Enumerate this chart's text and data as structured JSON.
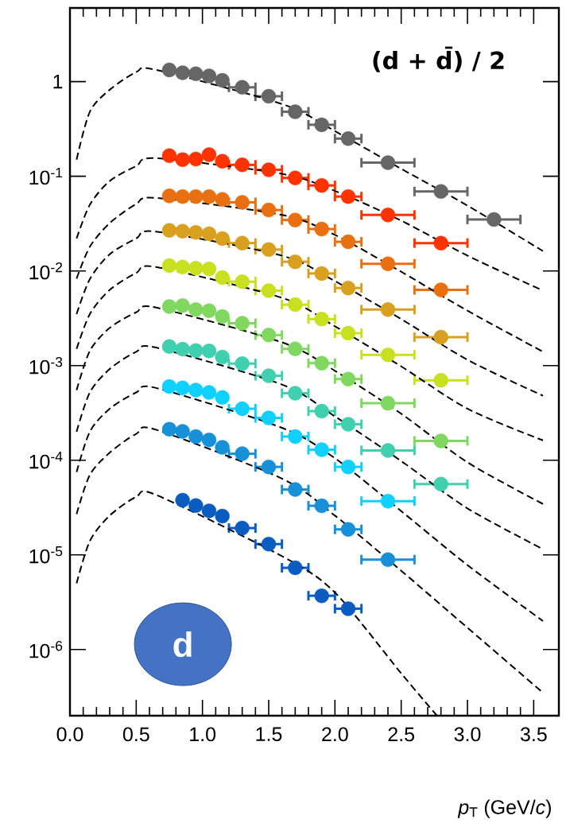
{
  "chart_data": {
    "type": "scatter",
    "title": "(d + d̄) / 2",
    "xlabel": "*p*$_{T}$ (GeV/*c*)",
    "annotations": [
      "d"
    ],
    "log": true,
    "xlim": [
      0,
      3.69
    ],
    "ylim": [
      2e-07,
      6
    ],
    "xticks": [
      {
        "value": 0,
        "label": "0.0"
      },
      {
        "value": 0.5,
        "label": "0.5"
      },
      {
        "value": 1,
        "label": "1.0"
      },
      {
        "value": 1.5,
        "label": "1.5"
      },
      {
        "value": 2,
        "label": "2.0"
      },
      {
        "value": 2.5,
        "label": "2.5"
      },
      {
        "value": 3,
        "label": "3.0"
      },
      {
        "value": 3.5,
        "label": "3.5"
      }
    ],
    "yticks": [
      {
        "value": 1e-06,
        "label": "10$^{-6}$"
      },
      {
        "value": 1e-05,
        "label": "10$^{-5}$"
      },
      {
        "value": 0.0001,
        "label": "10$^{-4}$"
      },
      {
        "value": 0.001,
        "label": "10$^{-3}$"
      },
      {
        "value": 0.01,
        "label": "10$^{-2}$"
      },
      {
        "value": 0.1,
        "label": "10$^{-1}$"
      },
      1
    ],
    "x": [
      0.75,
      0.85,
      0.95,
      1.05,
      1.15,
      1.3,
      1.5,
      1.7,
      1.9,
      2.1,
      2.4,
      2.8,
      3.2
    ],
    "series": [
      {
        "color": "#666666",
        "marker": "circle",
        "values": [
          1.33,
          1.24,
          1.21,
          1.15,
          1.03,
          0.87,
          0.7,
          0.48,
          0.35,
          0.25,
          0.139,
          0.069,
          0.035
        ],
        "xerrors": [
          null,
          null,
          null,
          null,
          null,
          0.1,
          0.1,
          0.1,
          0.1,
          0.1,
          0.2,
          0.2,
          0.2
        ]
      },
      {
        "color": "#ff3300",
        "marker": "circle",
        "values": [
          0.165,
          0.15,
          0.152,
          0.169,
          0.144,
          0.132,
          0.117,
          0.096,
          0.08,
          0.061,
          0.039,
          0.0197,
          null
        ],
        "xerrors": [
          null,
          null,
          null,
          null,
          null,
          0.1,
          0.1,
          0.1,
          0.1,
          0.1,
          0.2,
          0.2,
          null
        ]
      },
      {
        "color": "#e87010",
        "marker": "circle",
        "values": [
          0.062,
          0.061,
          0.061,
          0.061,
          0.057,
          0.053,
          0.044,
          0.0345,
          0.0277,
          0.0203,
          0.0119,
          0.0063,
          null
        ],
        "xerrors": [
          null,
          null,
          null,
          null,
          null,
          0.1,
          0.1,
          0.1,
          0.1,
          0.1,
          0.2,
          0.2,
          null
        ]
      },
      {
        "color": "#d9a020",
        "marker": "circle",
        "values": [
          0.0268,
          0.0263,
          0.0255,
          0.0247,
          0.022,
          0.0197,
          0.0168,
          0.0125,
          0.0094,
          0.0066,
          0.0039,
          0.002,
          null
        ],
        "xerrors": [
          null,
          null,
          null,
          null,
          null,
          0.1,
          0.1,
          0.1,
          0.1,
          0.1,
          0.2,
          0.2,
          null
        ]
      },
      {
        "color": "#c8e020",
        "marker": "circle",
        "values": [
          0.0114,
          0.011,
          0.0107,
          0.0105,
          0.0085,
          0.0077,
          0.0062,
          0.0044,
          0.0031,
          0.0022,
          0.0013,
          0.0007,
          null
        ],
        "xerrors": [
          null,
          null,
          null,
          null,
          null,
          0.1,
          0.1,
          0.1,
          0.1,
          0.1,
          0.2,
          0.2,
          null
        ]
      },
      {
        "color": "#80d860",
        "marker": "circle",
        "values": [
          0.0042,
          0.0043,
          0.0039,
          0.0038,
          0.0033,
          0.0028,
          0.0021,
          0.0015,
          0.00106,
          0.00072,
          0.0004,
          0.00016,
          null
        ],
        "xerrors": [
          null,
          null,
          null,
          null,
          null,
          0.1,
          0.1,
          0.1,
          0.1,
          0.1,
          0.2,
          0.2,
          null
        ]
      },
      {
        "color": "#40d0b0",
        "marker": "circle",
        "values": [
          0.00159,
          0.00149,
          0.00144,
          0.00143,
          0.00123,
          0.00105,
          0.00078,
          0.00051,
          0.00033,
          0.00024,
          0.000127,
          5.6e-05,
          null
        ],
        "xerrors": [
          null,
          null,
          null,
          null,
          null,
          0.1,
          0.1,
          0.1,
          0.1,
          0.1,
          0.2,
          0.2,
          null
        ]
      },
      {
        "color": "#10d0ff",
        "marker": "circle",
        "values": [
          0.0006,
          0.00058,
          0.00055,
          0.00052,
          0.00046,
          0.00035,
          0.00028,
          0.000178,
          0.000129,
          8.5e-05,
          3.7e-05,
          null,
          null
        ],
        "xerrors": [
          null,
          null,
          null,
          null,
          null,
          0.1,
          0.1,
          0.1,
          0.1,
          0.1,
          0.2,
          null,
          null
        ]
      },
      {
        "color": "#1890d8",
        "marker": "circle",
        "values": [
          0.000213,
          0.000202,
          0.000178,
          0.000164,
          0.000137,
          0.000117,
          8.5e-05,
          4.9e-05,
          3.3e-05,
          1.86e-05,
          8.9e-06,
          null,
          null
        ],
        "xerrors": [
          null,
          null,
          null,
          null,
          null,
          0.1,
          0.1,
          0.1,
          0.1,
          0.1,
          0.2,
          null,
          null
        ]
      },
      {
        "color": "#0a5cc0",
        "marker": "circle",
        "values": [
          null,
          3.78e-05,
          3.32e-05,
          2.92e-05,
          2.57e-05,
          1.92e-05,
          1.3e-05,
          7.3e-06,
          3.7e-06,
          2.7e-06,
          null,
          null,
          null
        ],
        "xerrors": [
          null,
          null,
          null,
          null,
          null,
          0.1,
          0.1,
          0.1,
          0.1,
          0.1,
          null,
          null,
          null
        ]
      },
      {
        "type": "line",
        "color": "#000000",
        "line_style": "dashed",
        "marker": "none",
        "x": [
          0.05,
          0.15,
          0.3,
          0.5,
          0.65,
          1.6,
          2.0,
          2.5,
          3.0,
          3.57
        ],
        "values": [
          0.15,
          0.48,
          0.82,
          1.26,
          1.33,
          0.58,
          0.3,
          0.12,
          0.049,
          0.0162
        ]
      },
      {
        "type": "line",
        "color": "#000000",
        "line_style": "dashed",
        "marker": "none",
        "x": [
          0.05,
          0.15,
          0.3,
          0.5,
          0.65,
          1.6,
          2.0,
          2.5,
          3.0,
          3.57
        ],
        "values": [
          0.022,
          0.05,
          0.089,
          0.128,
          0.155,
          0.106,
          0.07,
          0.034,
          0.0145,
          0.0062
        ]
      },
      {
        "type": "line",
        "color": "#000000",
        "line_style": "dashed",
        "marker": "none",
        "x": [
          0.05,
          0.15,
          0.3,
          0.5,
          0.65,
          1.6,
          2.0,
          2.5,
          3.0,
          3.57
        ],
        "values": [
          0.0083,
          0.018,
          0.032,
          0.051,
          0.059,
          0.039,
          0.024,
          0.0098,
          0.0038,
          0.0014
        ]
      },
      {
        "type": "line",
        "color": "#000000",
        "line_style": "dashed",
        "marker": "none",
        "x": [
          0.05,
          0.15,
          0.3,
          0.5,
          0.65,
          1.6,
          2.0,
          2.5,
          3.0,
          3.57
        ],
        "values": [
          0.0035,
          0.0082,
          0.015,
          0.022,
          0.026,
          0.0145,
          0.0078,
          0.0031,
          0.00115,
          0.00048
        ]
      },
      {
        "type": "line",
        "color": "#000000",
        "line_style": "dashed",
        "marker": "none",
        "x": [
          0.05,
          0.15,
          0.3,
          0.5,
          0.65,
          1.6,
          2.0,
          2.5,
          3.0,
          3.57
        ],
        "values": [
          0.0015,
          0.0035,
          0.0063,
          0.0095,
          0.011,
          0.0052,
          0.0026,
          0.00098,
          0.00035,
          0.000162
        ]
      },
      {
        "type": "line",
        "color": "#000000",
        "line_style": "dashed",
        "marker": "none",
        "x": [
          0.05,
          0.15,
          0.3,
          0.5,
          0.65,
          1.6,
          2.0,
          2.5,
          3.0,
          3.57
        ],
        "values": [
          0.00055,
          0.00143,
          0.0025,
          0.00365,
          0.0041,
          0.00176,
          0.00088,
          0.00031,
          9.5e-05,
          3.45e-05
        ]
      },
      {
        "type": "line",
        "color": "#000000",
        "line_style": "dashed",
        "marker": "none",
        "x": [
          0.05,
          0.15,
          0.3,
          0.5,
          0.65,
          1.6,
          2.0,
          2.5,
          3.0,
          3.57
        ],
        "values": [
          0.0002,
          0.00052,
          0.00092,
          0.0014,
          0.00155,
          0.00063,
          0.00029,
          9.8e-05,
          3.1e-05,
          1.15e-05
        ]
      },
      {
        "type": "line",
        "color": "#000000",
        "line_style": "dashed",
        "marker": "none",
        "x": [
          0.05,
          0.15,
          0.3,
          0.5,
          0.65,
          1.6,
          2.0,
          2.5,
          3.0,
          3.57
        ],
        "values": [
          7.5e-05,
          0.0002,
          0.00035,
          0.00052,
          0.00058,
          0.00022,
          0.000105,
          2.9e-05,
          7.8e-06,
          2e-06
        ]
      },
      {
        "type": "line",
        "color": "#000000",
        "line_style": "dashed",
        "marker": "none",
        "x": [
          0.05,
          0.15,
          0.3,
          0.5,
          0.65,
          1.6,
          2.0,
          2.5,
          3.0,
          3.57
        ],
        "values": [
          2.7e-05,
          7e-05,
          0.00012,
          0.00019,
          0.00021,
          6.4e-05,
          2.6e-05,
          6.8e-06,
          1.7e-06,
          3.5e-07
        ]
      },
      {
        "type": "line",
        "color": "#000000",
        "line_style": "dashed",
        "marker": "none",
        "x": [
          0.05,
          0.15,
          0.3,
          0.5,
          0.65,
          1.6,
          2.0,
          2.5,
          2.77
        ],
        "values": [
          5e-06,
          1.4e-05,
          2.6e-05,
          4.1e-05,
          4.3e-05,
          9.7e-06,
          4e-06,
          5.6e-07,
          2e-07
        ]
      }
    ]
  }
}
